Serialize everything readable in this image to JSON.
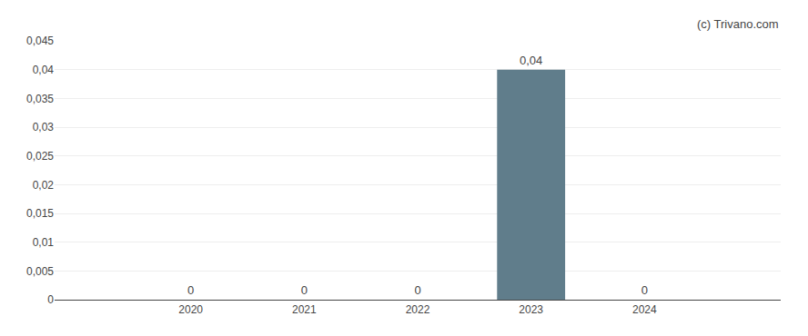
{
  "chart_data": {
    "type": "bar",
    "x": [
      2020,
      2021,
      2022,
      2023,
      2024
    ],
    "values": [
      0,
      0,
      0,
      0.04,
      0
    ],
    "data_labels": true,
    "value_labels": [
      "0",
      "0",
      "0",
      "0,04",
      "0"
    ],
    "color": "#607d8b",
    "xlim": [
      2018.8,
      2025.2
    ],
    "xticks": [
      2020,
      2021,
      2022,
      2023,
      2024
    ],
    "ylim": [
      0,
      0.045
    ],
    "yticks": [
      0,
      {
        "value": 0.005,
        "label": "0,005"
      },
      {
        "value": 0.01,
        "label": "0,01"
      },
      {
        "value": 0.015,
        "label": "0,015"
      },
      {
        "value": 0.02,
        "label": "0,02"
      },
      {
        "value": 0.025,
        "label": "0,025"
      },
      {
        "value": 0.03,
        "label": "0,03"
      },
      {
        "value": 0.035,
        "label": "0,035"
      },
      {
        "value": 0.04,
        "label": "0,04"
      },
      {
        "value": 0.045,
        "label": "0,045"
      }
    ],
    "grid": true,
    "annotations": [
      "(c) Trivano.com"
    ]
  }
}
